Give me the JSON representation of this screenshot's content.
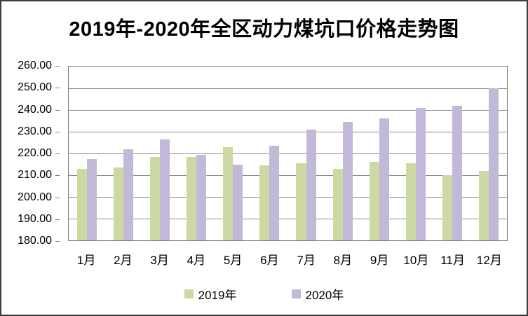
{
  "title": "2019年-2020年全区动力煤坑口价格走势图",
  "colors": {
    "series_2019": "#ccd9a2",
    "series_2020": "#c2b8d8",
    "gridline": "#8c8c8c",
    "plot_border": "#7a7a7a",
    "outer_border": "#3d3d3d",
    "text": "#000000"
  },
  "legend": {
    "items": [
      {
        "label": "2019年",
        "color": "#ccd9a2"
      },
      {
        "label": "2020年",
        "color": "#c2b8d8"
      }
    ],
    "position": "bottom"
  },
  "chart_data": {
    "type": "bar",
    "title": "2019年-2020年全区动力煤坑口价格走势图",
    "categories": [
      "1月",
      "2月",
      "3月",
      "4月",
      "5月",
      "6月",
      "7月",
      "8月",
      "9月",
      "10月",
      "11月",
      "12月"
    ],
    "series": [
      {
        "name": "2019年",
        "color": "#ccd9a2",
        "values": [
          213.0,
          213.5,
          218.5,
          218.5,
          223.0,
          214.5,
          215.5,
          213.0,
          216.0,
          215.5,
          210.0,
          212.0
        ]
      },
      {
        "name": "2020年",
        "color": "#c2b8d8",
        "values": [
          217.5,
          222.0,
          226.5,
          219.5,
          215.0,
          223.5,
          231.0,
          234.5,
          236.0,
          241.0,
          242.0,
          250.0
        ]
      }
    ],
    "xlabel": "",
    "ylabel": "",
    "ylim": [
      180,
      260
    ],
    "y_step": 10,
    "y_tick_labels": [
      "260.00",
      "250.00",
      "240.00",
      "230.00",
      "220.00",
      "210.00",
      "200.00",
      "190.00",
      "180.00"
    ],
    "grid": true,
    "legend_position": "bottom"
  }
}
